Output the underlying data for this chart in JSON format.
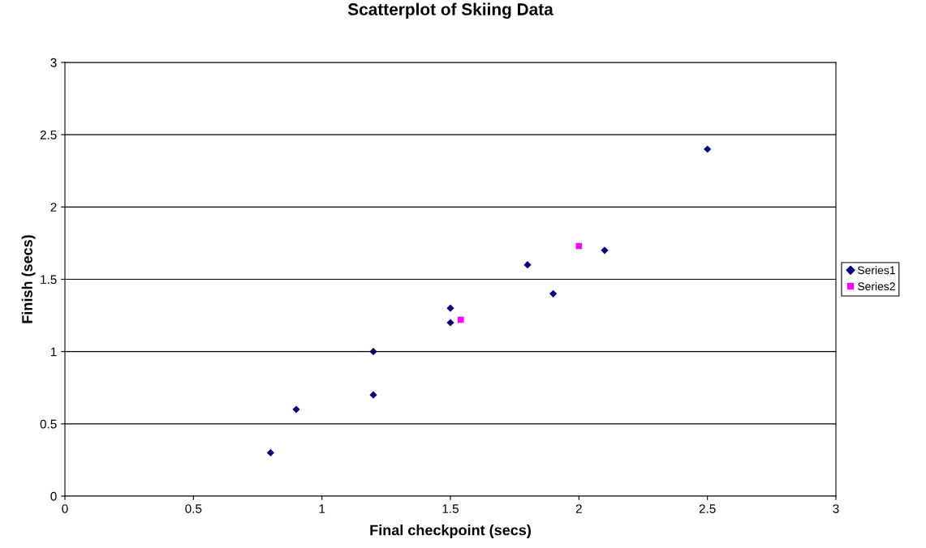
{
  "chart_data": {
    "type": "scatter",
    "title": "Scatterplot of Skiing Data",
    "xlabel": "Final checkpoint (secs)",
    "ylabel": "Finish (secs)",
    "series": [
      {
        "name": "Series1",
        "color": "#000080",
        "marker": "diamond",
        "x": [
          0.8,
          0.9,
          1.2,
          1.2,
          1.5,
          1.5,
          1.8,
          1.9,
          2.1,
          2.5
        ],
        "values": [
          0.3,
          0.6,
          1.0,
          0.7,
          1.3,
          1.2,
          1.6,
          1.4,
          1.7,
          2.4
        ]
      },
      {
        "name": "Series2",
        "color": "#ff00ff",
        "marker": "square",
        "x": [
          1.54,
          2.0
        ],
        "values": [
          1.22,
          1.73
        ]
      }
    ],
    "xlim": [
      0,
      3
    ],
    "ylim": [
      0,
      3
    ],
    "xticks": [
      0,
      0.5,
      1,
      1.5,
      2,
      2.5,
      3
    ],
    "yticks": [
      0,
      0.5,
      1,
      1.5,
      2,
      2.5,
      3
    ],
    "grid": "y",
    "legend": "right"
  }
}
